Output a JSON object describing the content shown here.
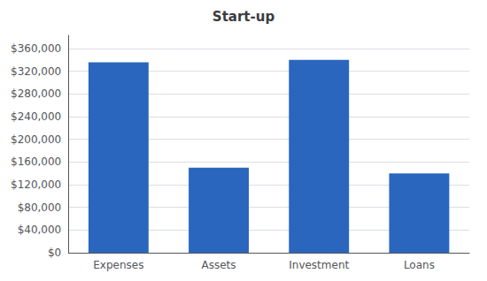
{
  "chart_data": {
    "type": "bar",
    "title": "Start-up",
    "categories": [
      "Expenses",
      "Assets",
      "Investment",
      "Loans"
    ],
    "values": [
      336000,
      150000,
      340000,
      140000
    ],
    "color": "#2B66BE",
    "ylim": [
      0,
      383400
    ],
    "yticks": [
      {
        "value": 0,
        "label": "$0"
      },
      {
        "value": 40000,
        "label": "$40,000"
      },
      {
        "value": 80000,
        "label": "$80,000"
      },
      {
        "value": 120000,
        "label": "$120,000"
      },
      {
        "value": 160000,
        "label": "$160,000"
      },
      {
        "value": 200000,
        "label": "$200,000"
      },
      {
        "value": 240000,
        "label": "$240,000"
      },
      {
        "value": 280000,
        "label": "$280,000"
      },
      {
        "value": 320000,
        "label": "$320,000"
      },
      {
        "value": 360000,
        "label": "$360,000"
      }
    ],
    "grid": true
  }
}
